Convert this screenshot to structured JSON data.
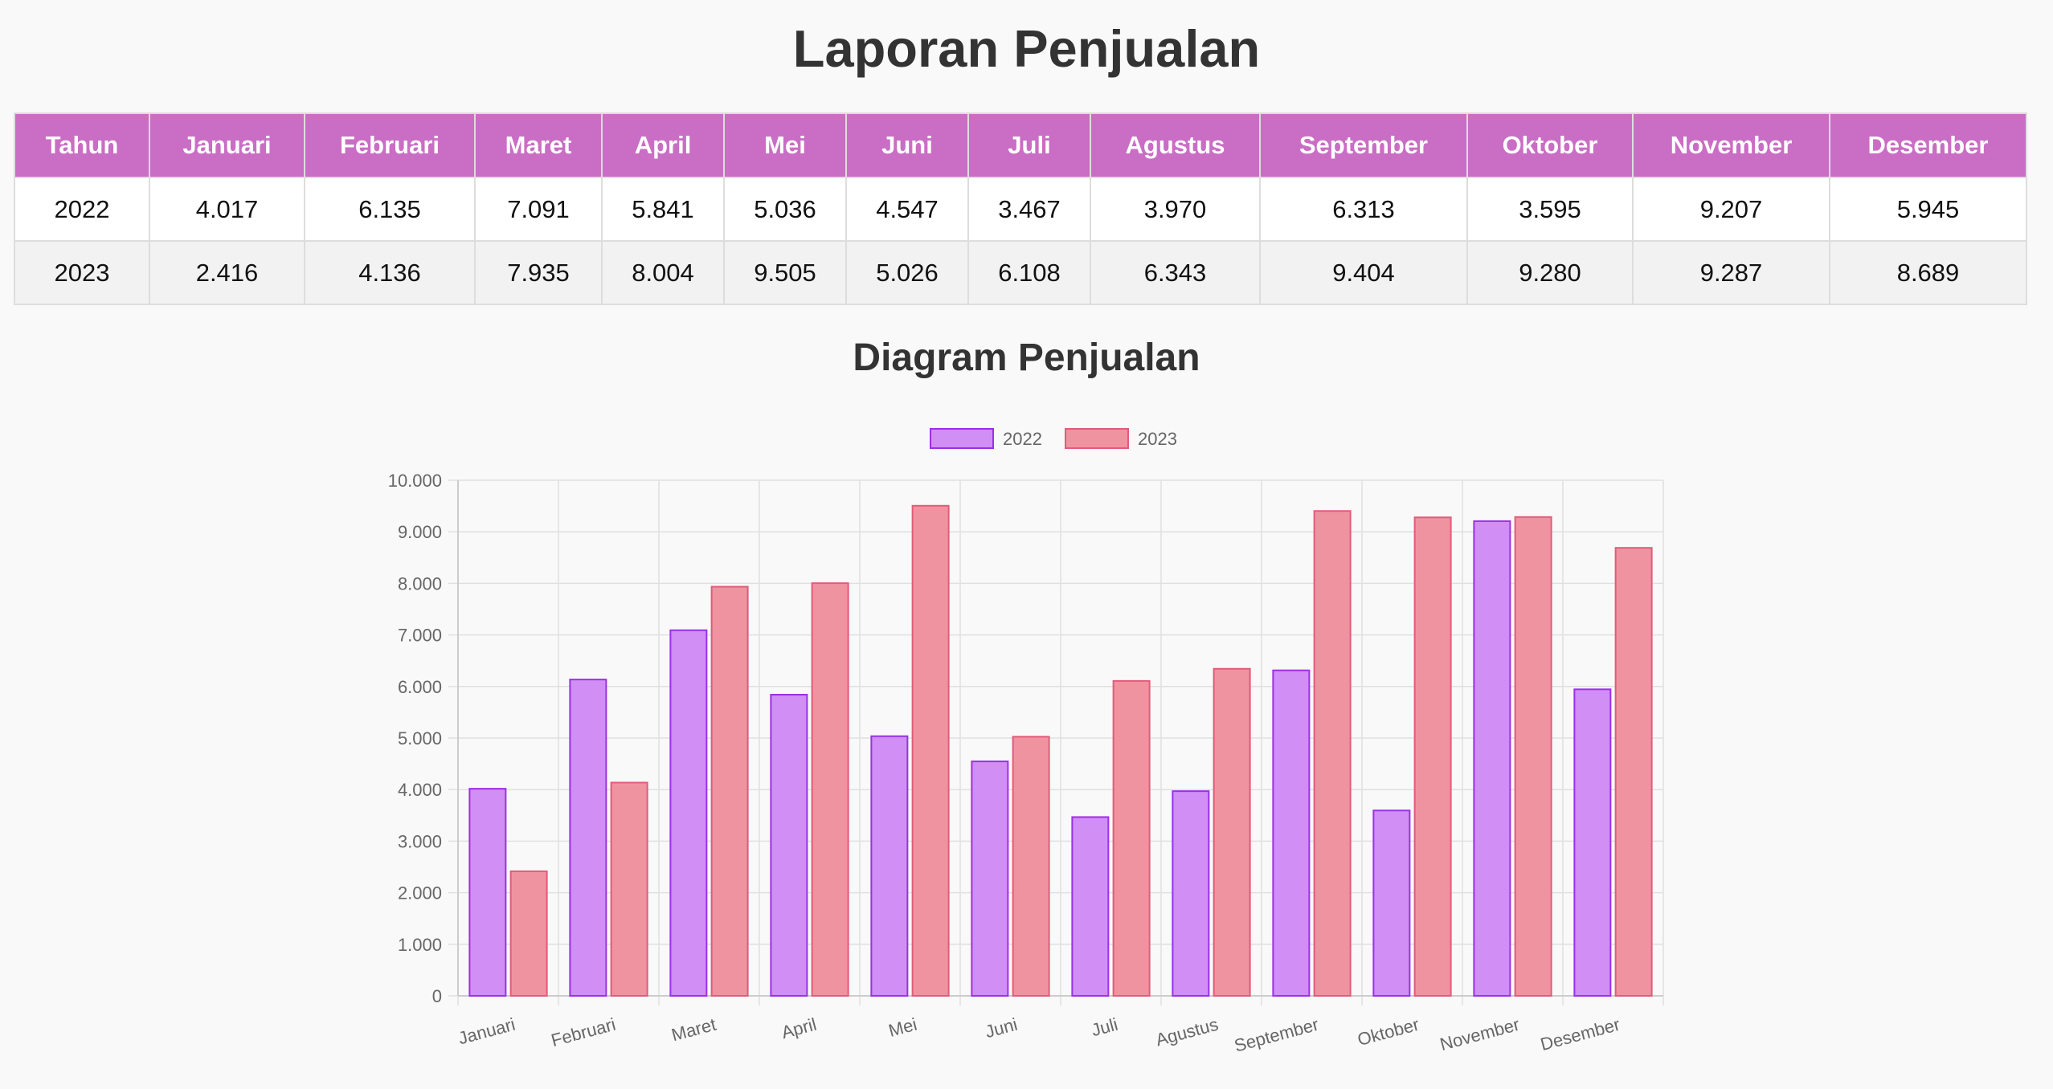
{
  "page": {
    "title": "Laporan Penjualan",
    "chart_title": "Diagram Penjualan"
  },
  "table": {
    "headers": [
      "Tahun",
      "Januari",
      "Februari",
      "Maret",
      "April",
      "Mei",
      "Juni",
      "Juli",
      "Agustus",
      "September",
      "Oktober",
      "November",
      "Desember"
    ],
    "rows": [
      [
        "2022",
        "4.017",
        "6.135",
        "7.091",
        "5.841",
        "5.036",
        "4.547",
        "3.467",
        "3.970",
        "6.313",
        "3.595",
        "9.207",
        "5.945"
      ],
      [
        "2023",
        "2.416",
        "4.136",
        "7.935",
        "8.004",
        "9.505",
        "5.026",
        "6.108",
        "6.343",
        "9.404",
        "9.280",
        "9.287",
        "8.689"
      ]
    ]
  },
  "chart_data": {
    "type": "bar",
    "categories": [
      "Januari",
      "Februari",
      "Maret",
      "April",
      "Mei",
      "Juni",
      "Juli",
      "Agustus",
      "September",
      "Oktober",
      "November",
      "Desember"
    ],
    "series": [
      {
        "name": "2022",
        "values": [
          4017,
          6135,
          7091,
          5841,
          5036,
          4547,
          3467,
          3970,
          6313,
          3595,
          9207,
          5945
        ],
        "fill": "#d18ef5",
        "stroke": "#9b30e6"
      },
      {
        "name": "2023",
        "values": [
          2416,
          4136,
          7935,
          8004,
          9505,
          5026,
          6108,
          6343,
          9404,
          9280,
          9287,
          8689
        ],
        "fill": "#f093a0",
        "stroke": "#e05c7a"
      }
    ],
    "ylim": [
      0,
      10000
    ],
    "yticks": [
      0,
      1000,
      2000,
      3000,
      4000,
      5000,
      6000,
      7000,
      8000,
      9000,
      10000
    ],
    "ytick_labels": [
      "0",
      "1.000",
      "2.000",
      "3.000",
      "4.000",
      "5.000",
      "6.000",
      "7.000",
      "8.000",
      "9.000",
      "10.000"
    ],
    "legend_position": "top-center",
    "grid": true
  }
}
